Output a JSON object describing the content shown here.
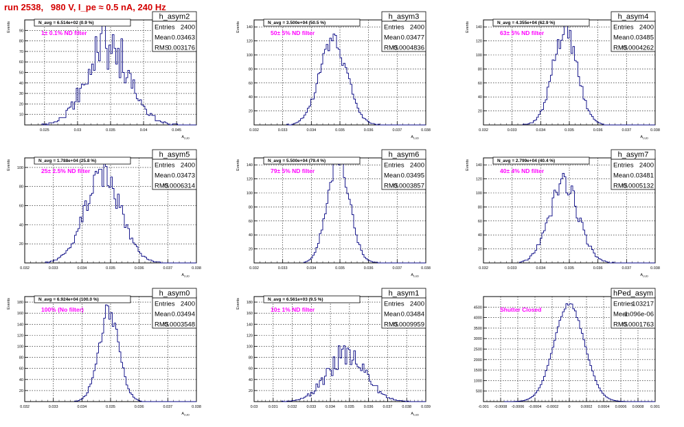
{
  "page_title": "run 2538,   980 V, I_pe ≈ 0.5 nA, 240 Hz",
  "colors": {
    "histogram": "#000080",
    "annotation": "#ff00ff",
    "title": "#d40000",
    "axis": "#000000",
    "grid": "#000000"
  },
  "chart_data": [
    {
      "type": "bar",
      "name": "h_asym2",
      "title": "h_asym2",
      "subtitle": "N_avg = 6.514e+02 (0.9 %)",
      "annotation": "1± 0.1% ND filter",
      "xlabel": "A_LUD",
      "ylabel": "Events",
      "xlim": [
        0.022,
        0.048
      ],
      "ylim": [
        0,
        100
      ],
      "xticks": [
        "0.025",
        "0.03",
        "0.035",
        "0.04",
        "0.045"
      ],
      "xtick_values": [
        0.025,
        0.03,
        0.035,
        0.04,
        0.045
      ],
      "yticks": [
        "10",
        "20",
        "30",
        "40",
        "50",
        "60",
        "70",
        "80",
        "90"
      ],
      "ytick_values": [
        10,
        20,
        30,
        40,
        50,
        60,
        70,
        80,
        90
      ],
      "stats": [
        {
          "label": "Entries",
          "value": "2400"
        },
        {
          "label": "Mean",
          "value": "0.03463"
        },
        {
          "label": "RMS",
          "value": "0.003176"
        }
      ],
      "mean": 0.03463,
      "rms": 0.003176,
      "entries": 2400,
      "bin_width": 0.00026,
      "noise": 0.35
    },
    {
      "type": "bar",
      "name": "h_asym3",
      "title": "h_asym3",
      "subtitle": "N_avg = 3.500e+04 (50.5 %)",
      "annotation": "50± 5% ND filter",
      "xlabel": "A_LUD",
      "ylabel": "Events",
      "xlim": [
        0.032,
        0.038
      ],
      "ylim": [
        0,
        150
      ],
      "xticks": [
        "0.032",
        "0.033",
        "0.034",
        "0.035",
        "0.036",
        "0.037",
        "0.038"
      ],
      "xtick_values": [
        0.032,
        0.033,
        0.034,
        0.035,
        0.036,
        0.037,
        0.038
      ],
      "yticks": [
        "20",
        "40",
        "60",
        "80",
        "100",
        "120",
        "140"
      ],
      "ytick_values": [
        20,
        40,
        60,
        80,
        100,
        120,
        140
      ],
      "stats": [
        {
          "label": "Entries",
          "value": "2400"
        },
        {
          "label": "Mean",
          "value": "0.03477"
        },
        {
          "label": "RMS",
          "value": "0.0004836"
        }
      ],
      "mean": 0.03477,
      "rms": 0.0004836,
      "entries": 2400,
      "bin_width": 6e-05,
      "noise": 0.12
    },
    {
      "type": "bar",
      "name": "h_asym4",
      "title": "h_asym4",
      "subtitle": "N_avg = 4.355e+04 (62.9 %)",
      "annotation": "63± 5% ND filter",
      "xlabel": "A_LUD",
      "ylabel": "Events",
      "xlim": [
        0.032,
        0.038
      ],
      "ylim": [
        0,
        150
      ],
      "xticks": [
        "0.032",
        "0.033",
        "0.034",
        "0.035",
        "0.036",
        "0.037",
        "0.038"
      ],
      "xtick_values": [
        0.032,
        0.033,
        0.034,
        0.035,
        0.036,
        0.037,
        0.038
      ],
      "yticks": [
        "20",
        "40",
        "60",
        "80",
        "100",
        "120",
        "140"
      ],
      "ytick_values": [
        20,
        40,
        60,
        80,
        100,
        120,
        140
      ],
      "stats": [
        {
          "label": "Entries",
          "value": "2400"
        },
        {
          "label": "Mean",
          "value": "0.03485"
        },
        {
          "label": "RMS",
          "value": "0.0004262"
        }
      ],
      "mean": 0.03485,
      "rms": 0.0004262,
      "entries": 2400,
      "bin_width": 6e-05,
      "noise": 0.12
    },
    {
      "type": "bar",
      "name": "h_asym5",
      "title": "h_asym5",
      "subtitle": "N_avg = 1.788e+04 (25.8 %)",
      "annotation": "25± 2.5% ND filter",
      "xlabel": "A_LUD",
      "ylabel": "Events",
      "xlim": [
        0.032,
        0.038
      ],
      "ylim": [
        0,
        110
      ],
      "xticks": [
        "0.032",
        "0.033",
        "0.034",
        "0.035",
        "0.036",
        "0.037",
        "0.038"
      ],
      "xtick_values": [
        0.032,
        0.033,
        0.034,
        0.035,
        0.036,
        0.037,
        0.038
      ],
      "yticks": [
        "20",
        "40",
        "60",
        "80",
        "100"
      ],
      "ytick_values": [
        20,
        40,
        60,
        80,
        100
      ],
      "stats": [
        {
          "label": "Entries",
          "value": "2400"
        },
        {
          "label": "Mean",
          "value": "0.03473"
        },
        {
          "label": "RMS",
          "value": "0.0006314"
        }
      ],
      "mean": 0.03473,
      "rms": 0.0006314,
      "entries": 2400,
      "bin_width": 6e-05,
      "noise": 0.18
    },
    {
      "type": "bar",
      "name": "h_asym6",
      "title": "h_asym6",
      "subtitle": "N_avg = 5.500e+04 (79.4 %)",
      "annotation": "79± 5% ND filter",
      "xlabel": "A_LUD",
      "ylabel": "Events",
      "xlim": [
        0.032,
        0.038
      ],
      "ylim": [
        0,
        150
      ],
      "xticks": [
        "0.032",
        "0.033",
        "0.034",
        "0.035",
        "0.036",
        "0.037",
        "0.038"
      ],
      "xtick_values": [
        0.032,
        0.033,
        0.034,
        0.035,
        0.036,
        0.037,
        0.038
      ],
      "yticks": [
        "20",
        "40",
        "60",
        "80",
        "100",
        "120",
        "140"
      ],
      "ytick_values": [
        20,
        40,
        60,
        80,
        100,
        120,
        140
      ],
      "stats": [
        {
          "label": "Entries",
          "value": "2400"
        },
        {
          "label": "Mean",
          "value": "0.03495"
        },
        {
          "label": "RMS",
          "value": "0.0003857"
        }
      ],
      "mean": 0.03495,
      "rms": 0.0003857,
      "entries": 2400,
      "bin_width": 6e-05,
      "noise": 0.12
    },
    {
      "type": "bar",
      "name": "h_asym7",
      "title": "h_asym7",
      "subtitle": "N_avg = 2.799e+04 (40.4 %)",
      "annotation": "40± 4% ND filter",
      "xlabel": "A_LUD",
      "ylabel": "Events",
      "xlim": [
        0.032,
        0.038
      ],
      "ylim": [
        0,
        150
      ],
      "xticks": [
        "0.032",
        "0.033",
        "0.034",
        "0.035",
        "0.036",
        "0.037",
        "0.038"
      ],
      "xtick_values": [
        0.032,
        0.033,
        0.034,
        0.035,
        0.036,
        0.037,
        0.038
      ],
      "yticks": [
        "20",
        "40",
        "60",
        "80",
        "100",
        "120",
        "140"
      ],
      "ytick_values": [
        20,
        40,
        60,
        80,
        100,
        120,
        140
      ],
      "stats": [
        {
          "label": "Entries",
          "value": "2400"
        },
        {
          "label": "Mean",
          "value": "0.03481"
        },
        {
          "label": "RMS",
          "value": "0.0005132"
        }
      ],
      "mean": 0.03481,
      "rms": 0.0005132,
      "entries": 2400,
      "bin_width": 6e-05,
      "noise": 0.15
    },
    {
      "type": "bar",
      "name": "h_asym0",
      "title": "h_asym0",
      "subtitle": "N_avg = 6.924e+04 (100.0 %)",
      "annotation": "100% (No filter)",
      "xlabel": "A_LUD",
      "ylabel": "Events",
      "xlim": [
        0.032,
        0.038
      ],
      "ylim": [
        0,
        190
      ],
      "xticks": [
        "0.032",
        "0.033",
        "0.034",
        "0.035",
        "0.036",
        "0.037",
        "0.038"
      ],
      "xtick_values": [
        0.032,
        0.033,
        0.034,
        0.035,
        0.036,
        0.037,
        0.038
      ],
      "yticks": [
        "20",
        "40",
        "60",
        "80",
        "100",
        "120",
        "140",
        "160",
        "180"
      ],
      "ytick_values": [
        20,
        40,
        60,
        80,
        100,
        120,
        140,
        160,
        180
      ],
      "stats": [
        {
          "label": "Entries",
          "value": "2400"
        },
        {
          "label": "Mean",
          "value": "0.03494"
        },
        {
          "label": "RMS",
          "value": "0.0003548"
        }
      ],
      "mean": 0.03494,
      "rms": 0.0003548,
      "entries": 2400,
      "bin_width": 6e-05,
      "noise": 0.12
    },
    {
      "type": "bar",
      "name": "h_asym1",
      "title": "h_asym1",
      "subtitle": "N_avg = 6.561e+03 (9.5 %)",
      "annotation": "10± 1% ND filter",
      "xlabel": "A_LUD",
      "ylabel": "Events",
      "xlim": [
        0.03,
        0.039
      ],
      "ylim": [
        0,
        190
      ],
      "xticks": [
        "0.03",
        "0.031",
        "0.032",
        "0.033",
        "0.034",
        "0.035",
        "0.036",
        "0.037",
        "0.038",
        "0.039"
      ],
      "xtick_values": [
        0.03,
        0.031,
        0.032,
        0.033,
        0.034,
        0.035,
        0.036,
        0.037,
        0.038,
        0.039
      ],
      "yticks": [
        "20",
        "40",
        "60",
        "80",
        "100",
        "120",
        "140",
        "160",
        "180"
      ],
      "ytick_values": [
        20,
        40,
        60,
        80,
        100,
        120,
        140,
        160,
        180
      ],
      "stats": [
        {
          "label": "Entries",
          "value": "2400"
        },
        {
          "label": "Mean",
          "value": "0.03484"
        },
        {
          "label": "RMS",
          "value": "0.0009959"
        }
      ],
      "mean": 0.03484,
      "rms": 0.0009959,
      "entries": 2400,
      "bin_width": 9e-05,
      "noise": 0.28
    },
    {
      "type": "bar",
      "name": "hPed_asym",
      "title": "hPed_asym",
      "subtitle": "",
      "annotation": "Shutter Closed",
      "xlabel": "",
      "ylabel": "",
      "xlim": [
        -0.001,
        0.001
      ],
      "ylim": [
        0,
        5000
      ],
      "xticks": [
        "-0.001",
        "-0.0008",
        "-0.0006",
        "-0.0004",
        "-0.0002",
        "0",
        "0.0002",
        "0.0004",
        "0.0006",
        "0.0008",
        "0.001"
      ],
      "xtick_values": [
        -0.001,
        -0.0008,
        -0.0006,
        -0.0004,
        -0.0002,
        0,
        0.0002,
        0.0004,
        0.0006,
        0.0008,
        0.001
      ],
      "yticks": [
        "500",
        "1000",
        "1500",
        "2000",
        "2500",
        "3000",
        "3500",
        "4000",
        "4500"
      ],
      "ytick_values": [
        500,
        1000,
        1500,
        2000,
        2500,
        3000,
        3500,
        4000,
        4500
      ],
      "stats": [
        {
          "label": "Entries",
          "value": "103217"
        },
        {
          "label": "Mean",
          "value": "-1.096e-06"
        },
        {
          "label": "RMS",
          "value": "0.0001763"
        }
      ],
      "mean": -1.096e-06,
      "rms": 0.0001763,
      "entries": 103217,
      "bin_width": 2e-05,
      "noise": 0.02
    }
  ]
}
